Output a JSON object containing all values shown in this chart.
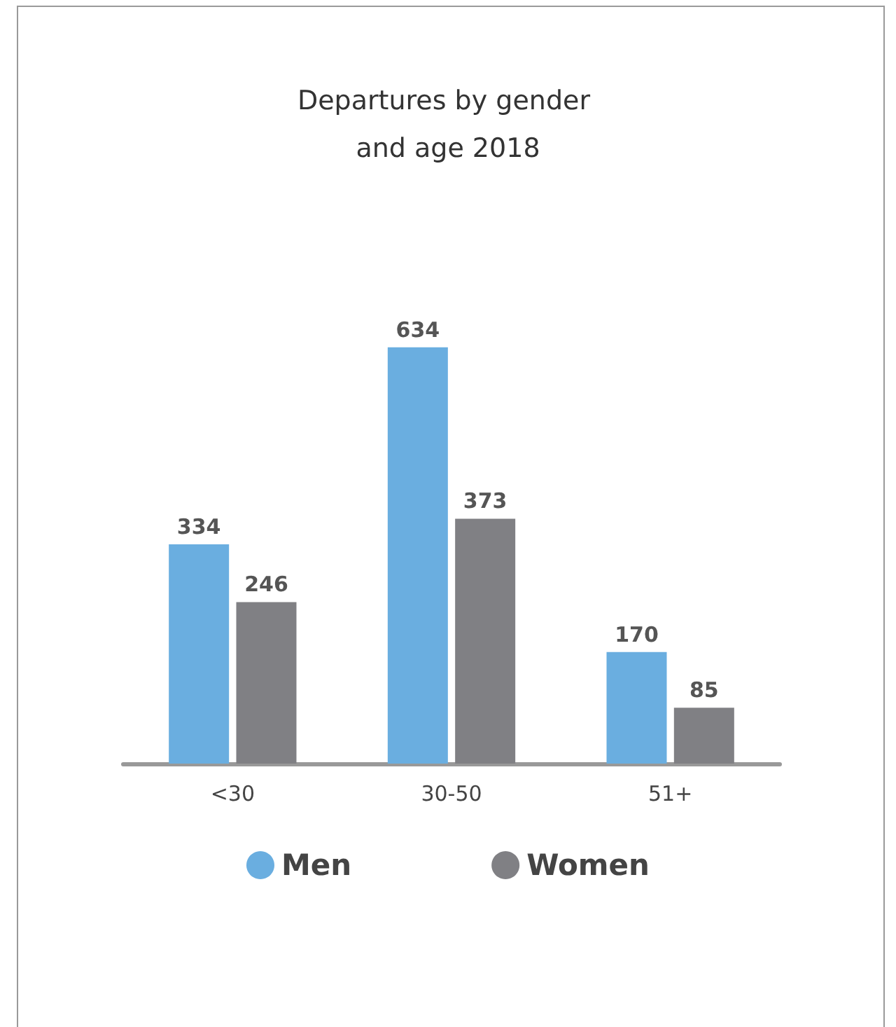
{
  "chart_data": {
    "type": "bar",
    "title": "Departures by gender and age 2018",
    "categories": [
      "<30",
      "30-50",
      "51+"
    ],
    "series": [
      {
        "name": "Men",
        "color": "#6aaee0",
        "values": [
          334,
          634,
          170
        ]
      },
      {
        "name": "Women",
        "color": "#808084",
        "values": [
          246,
          373,
          85
        ]
      }
    ],
    "data_labels": true,
    "legend": "bottom"
  }
}
